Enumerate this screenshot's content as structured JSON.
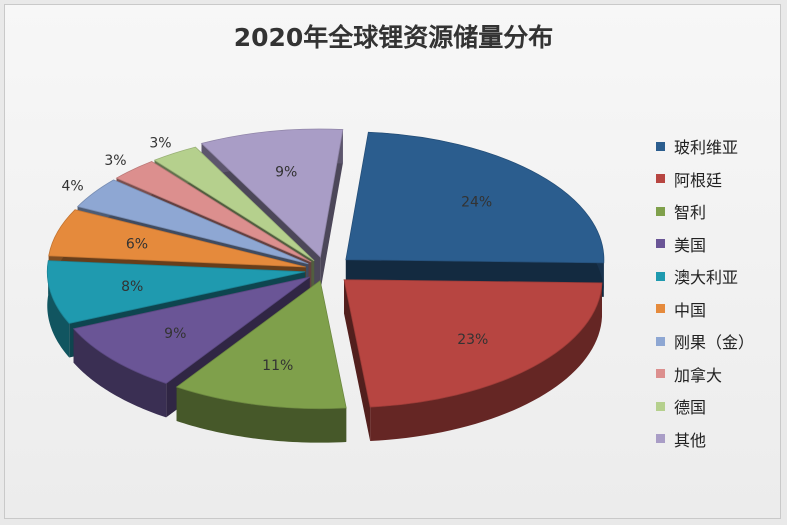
{
  "chart_data": {
    "type": "pie",
    "title": "2020年全球锂资源储量分布",
    "legend_position": "right",
    "style": "exploded 3d",
    "slices": [
      {
        "label": "玻利维亚",
        "value": 24,
        "display": "24%",
        "color": "#2b5d8e"
      },
      {
        "label": "阿根廷",
        "value": 23,
        "display": "23%",
        "color": "#b74541"
      },
      {
        "label": "智利",
        "value": 11,
        "display": "11%",
        "color": "#7fa04b"
      },
      {
        "label": "美国",
        "value": 9,
        "display": "9%",
        "color": "#6a5596"
      },
      {
        "label": "澳大利亚",
        "value": 8,
        "display": "8%",
        "color": "#1f9aaf"
      },
      {
        "label": "中国",
        "value": 6,
        "display": "6%",
        "color": "#e58a3c"
      },
      {
        "label": "刚果（金）",
        "value": 4,
        "display": "4%",
        "color": "#8ea7d3"
      },
      {
        "label": "加拿大",
        "value": 3,
        "display": "3%",
        "color": "#dc8f8e"
      },
      {
        "label": "德国",
        "value": 3,
        "display": "3%",
        "color": "#b5d08d"
      },
      {
        "label": "其他",
        "value": 9,
        "display": "9%",
        "color": "#a99dc6"
      }
    ]
  }
}
